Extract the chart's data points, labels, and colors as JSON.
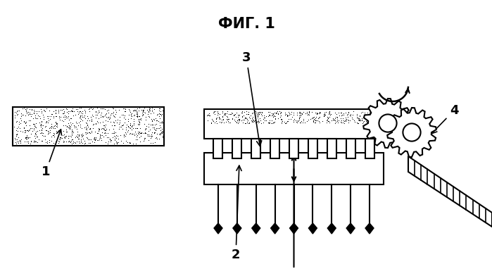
{
  "title": "ФИГ. 1",
  "title_fontsize": 15,
  "bg_color": "#ffffff",
  "label_1": "1",
  "label_2": "2",
  "label_3": "3",
  "label_4": "4",
  "label_fontsize": 13,
  "lw": 1.5
}
